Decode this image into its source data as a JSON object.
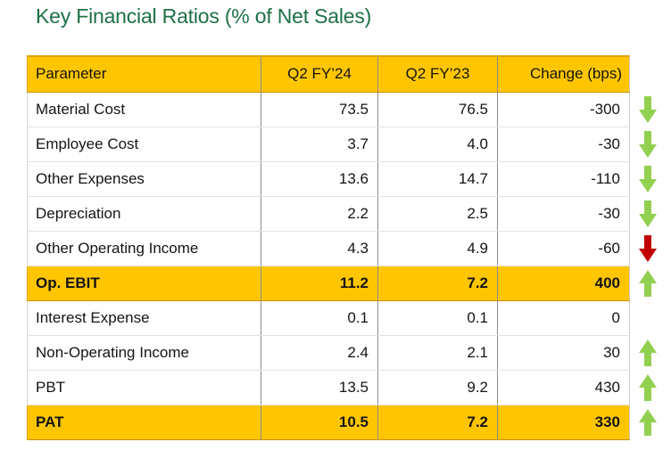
{
  "title": "Key Financial Ratios (% of Net Sales)",
  "colors": {
    "title_green": "#1E7145",
    "highlight_yellow": "#FFC600",
    "arrow_green": "#92D050",
    "arrow_red": "#C00000"
  },
  "table": {
    "columns": [
      "Parameter",
      "Q2 FY’24",
      "Q2 FY’23",
      "Change (bps)"
    ],
    "rows": [
      {
        "parameter": "Material Cost",
        "q2fy24": "73.5",
        "q2fy23": "76.5",
        "change": "-300",
        "arrow": "down-green",
        "highlight": false
      },
      {
        "parameter": "Employee Cost",
        "q2fy24": "3.7",
        "q2fy23": "4.0",
        "change": "-30",
        "arrow": "down-green",
        "highlight": false
      },
      {
        "parameter": "Other Expenses",
        "q2fy24": "13.6",
        "q2fy23": "14.7",
        "change": "-110",
        "arrow": "down-green",
        "highlight": false
      },
      {
        "parameter": "Depreciation",
        "q2fy24": "2.2",
        "q2fy23": "2.5",
        "change": "-30",
        "arrow": "down-green",
        "highlight": false
      },
      {
        "parameter": "Other Operating Income",
        "q2fy24": "4.3",
        "q2fy23": "4.9",
        "change": "-60",
        "arrow": "down-red",
        "highlight": false
      },
      {
        "parameter": "Op. EBIT",
        "q2fy24": "11.2",
        "q2fy23": "7.2",
        "change": "400",
        "arrow": "up-green",
        "highlight": true
      },
      {
        "parameter": "Interest Expense",
        "q2fy24": "0.1",
        "q2fy23": "0.1",
        "change": "0",
        "arrow": "none",
        "highlight": false
      },
      {
        "parameter": "Non-Operating Income",
        "q2fy24": "2.4",
        "q2fy23": "2.1",
        "change": "30",
        "arrow": "up-green",
        "highlight": false
      },
      {
        "parameter": "PBT",
        "q2fy24": "13.5",
        "q2fy23": "9.2",
        "change": "430",
        "arrow": "up-green",
        "highlight": false
      },
      {
        "parameter": "PAT",
        "q2fy24": "10.5",
        "q2fy23": "7.2",
        "change": "330",
        "arrow": "up-green",
        "highlight": true
      }
    ]
  }
}
